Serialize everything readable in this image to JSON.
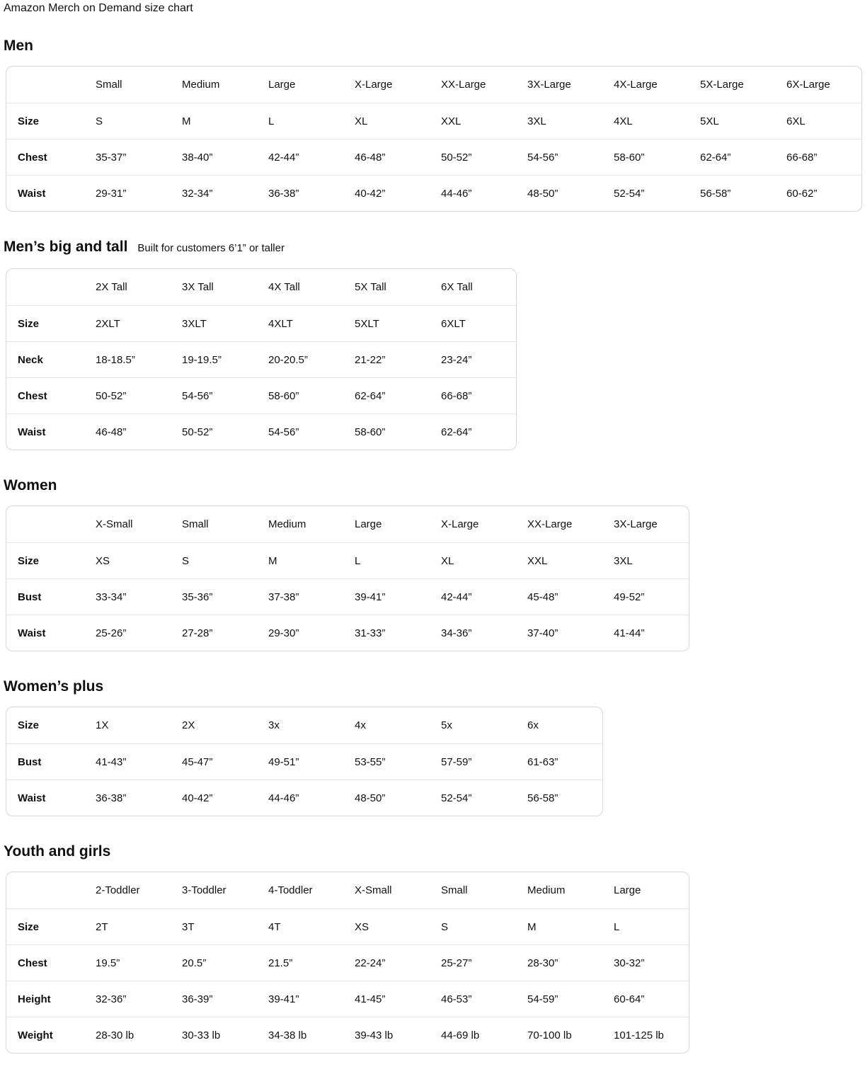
{
  "page": {
    "title": "Amazon Merch on Demand size chart"
  },
  "colors": {
    "text": "#0f1111",
    "table_border": "#d5d9d9",
    "row_divider": "#e7e7e7",
    "background": "#ffffff"
  },
  "sections": [
    {
      "id": "men",
      "heading": "Men",
      "subtitle": "",
      "column_headers": [
        "Small",
        "Medium",
        "Large",
        "X-Large",
        "XX-Large",
        "3X-Large",
        "4X-Large",
        "5X-Large",
        "6X-Large"
      ],
      "rows": [
        {
          "label": "Size",
          "values": [
            "S",
            "M",
            "L",
            "XL",
            "XXL",
            "3XL",
            "4XL",
            "5XL",
            "6XL"
          ]
        },
        {
          "label": "Chest",
          "values": [
            "35-37”",
            "38-40”",
            "42-44”",
            "46-48”",
            "50-52”",
            "54-56”",
            "58-60”",
            "62-64”",
            "66-68”"
          ]
        },
        {
          "label": "Waist",
          "values": [
            "29-31”",
            "32-34”",
            "36-38”",
            "40-42”",
            "44-46”",
            "48-50”",
            "52-54”",
            "56-58”",
            "60-62”"
          ]
        }
      ]
    },
    {
      "id": "mens-big-and-tall",
      "heading": "Men’s big and tall",
      "subtitle": "Built for customers 6’1” or taller",
      "column_headers": [
        "2X Tall",
        "3X Tall",
        "4X Tall",
        "5X Tall",
        "6X Tall"
      ],
      "rows": [
        {
          "label": "Size",
          "values": [
            "2XLT",
            "3XLT",
            "4XLT",
            "5XLT",
            "6XLT"
          ]
        },
        {
          "label": "Neck",
          "values": [
            "18-18.5”",
            "19-19.5”",
            "20-20.5”",
            "21-22”",
            "23-24”"
          ]
        },
        {
          "label": "Chest",
          "values": [
            "50-52”",
            "54-56”",
            "58-60”",
            "62-64”",
            "66-68”"
          ]
        },
        {
          "label": "Waist",
          "values": [
            "46-48”",
            "50-52”",
            "54-56”",
            "58-60”",
            "62-64”"
          ]
        }
      ]
    },
    {
      "id": "women",
      "heading": "Women",
      "subtitle": "",
      "column_headers": [
        "X-Small",
        "Small",
        "Medium",
        "Large",
        "X-Large",
        "XX-Large",
        "3X-Large"
      ],
      "rows": [
        {
          "label": "Size",
          "values": [
            "XS",
            "S",
            "M",
            "L",
            "XL",
            "XXL",
            "3XL"
          ]
        },
        {
          "label": "Bust",
          "values": [
            "33-34”",
            "35-36”",
            "37-38”",
            "39-41”",
            "42-44”",
            "45-48”",
            "49-52”"
          ]
        },
        {
          "label": "Waist",
          "values": [
            "25-26”",
            "27-28”",
            "29-30”",
            "31-33”",
            "34-36”",
            "37-40”",
            "41-44”"
          ]
        }
      ]
    },
    {
      "id": "womens-plus",
      "heading": "Women’s plus",
      "subtitle": "",
      "column_headers": [],
      "rows": [
        {
          "label": "Size",
          "values": [
            "1X",
            "2X",
            "3x",
            "4x",
            "5x",
            "6x"
          ]
        },
        {
          "label": "Bust",
          "values": [
            "41-43”",
            "45-47”",
            "49-51”",
            "53-55”",
            "57-59”",
            "61-63”"
          ]
        },
        {
          "label": "Waist",
          "values": [
            "36-38”",
            "40-42”",
            "44-46”",
            "48-50”",
            "52-54”",
            "56-58”"
          ]
        }
      ]
    },
    {
      "id": "youth-and-girls",
      "heading": "Youth and girls",
      "subtitle": "",
      "column_headers": [
        "2-Toddler",
        "3-Toddler",
        "4-Toddler",
        "X-Small",
        "Small",
        "Medium",
        "Large"
      ],
      "rows": [
        {
          "label": "Size",
          "values": [
            "2T",
            "3T",
            "4T",
            "XS",
            "S",
            "M",
            "L"
          ]
        },
        {
          "label": "Chest",
          "values": [
            "19.5”",
            "20.5”",
            "21.5”",
            "22-24”",
            "25-27”",
            "28-30”",
            "30-32”"
          ]
        },
        {
          "label": "Height",
          "values": [
            "32-36”",
            "36-39”",
            "39-41”",
            "41-45”",
            "46-53”",
            "54-59”",
            "60-64”"
          ]
        },
        {
          "label": "Weight",
          "values": [
            "28-30 lb",
            "30-33 lb",
            "34-38 lb",
            "39-43 lb",
            "44-69 lb",
            "70-100 lb",
            "101-125 lb"
          ]
        }
      ]
    }
  ]
}
